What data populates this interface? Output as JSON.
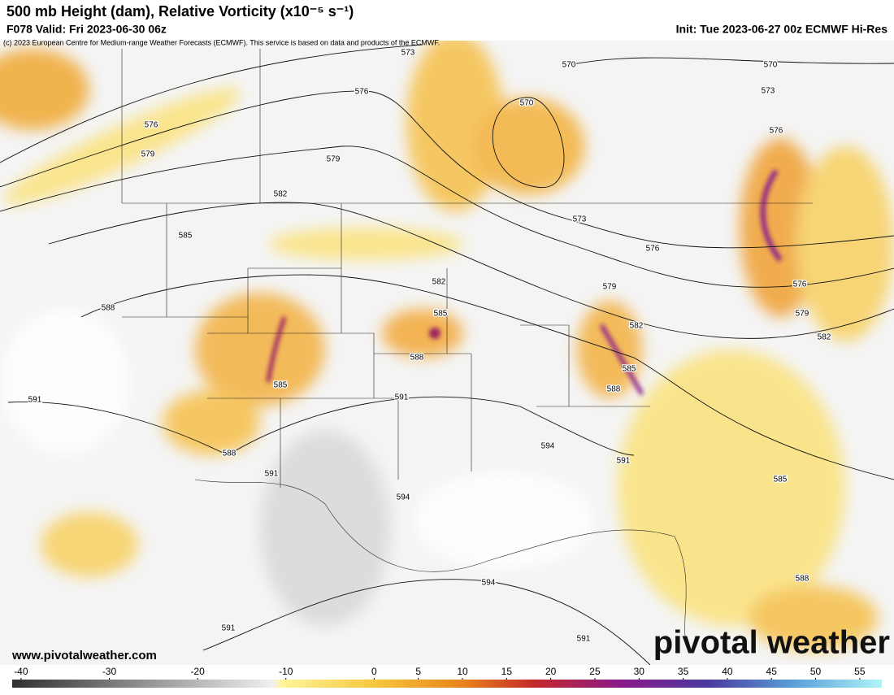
{
  "header": {
    "title": "500 mb Height (dam), Relative Vorticity (x10⁻⁵ s⁻¹)",
    "valid": "F078 Valid: Fri 2023-06-30 06z",
    "init": "Init: Tue 2023-06-27 00z ECMWF Hi-Res",
    "copyright": "(c) 2023 European Centre for Medium-range Weather Forecasts (ECMWF). This service is based on data and products of the ECMWF."
  },
  "map": {
    "contour_labels": [
      "573",
      "570",
      "570",
      "570",
      "573",
      "576",
      "576",
      "576",
      "579",
      "579",
      "582",
      "573",
      "576",
      "585",
      "582",
      "579",
      "576",
      "588",
      "585",
      "579",
      "582",
      "582",
      "588",
      "585",
      "585",
      "588",
      "591",
      "591",
      "588",
      "594",
      "591",
      "591",
      "594",
      "585",
      "594",
      "588",
      "591",
      "591"
    ]
  },
  "colorbar": {
    "range": [
      -41,
      57.5
    ],
    "ticks": [
      -40,
      -30,
      -20,
      -10,
      0,
      5,
      10,
      15,
      20,
      25,
      30,
      35,
      40,
      45,
      50,
      55
    ]
  },
  "footer": {
    "website": "www.pivotalweather.com",
    "logo": "pivotal weather"
  }
}
